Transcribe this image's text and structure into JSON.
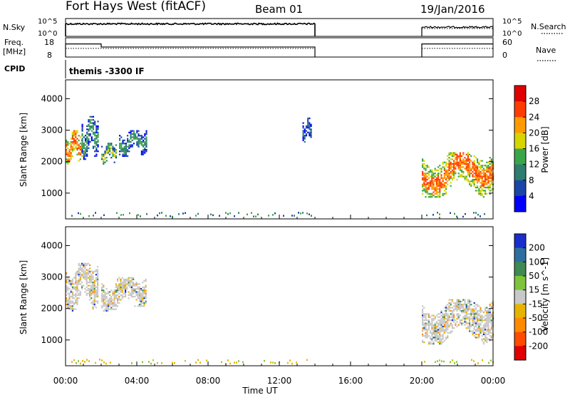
{
  "header": {
    "station": "Fort Hays West (fitACF)",
    "beam": "Beam 01",
    "date": "19/Jan/2016"
  },
  "param_panels": {
    "nsky_label": "N.Sky",
    "nsky_ticks": [
      "10^5",
      "10^0"
    ],
    "nsearch_label": "N.Search",
    "nsearch_ticks": [
      "10^5",
      "10^0"
    ],
    "freq_label": "Freq.",
    "freq_unit": "[MHz]",
    "freq_ticks": [
      "18",
      "8"
    ],
    "nave_label": "Nave",
    "nave_ticks": [
      "60",
      "0"
    ],
    "cpid_label": "CPID",
    "cpid_text": "themis -3300 IF",
    "series": {
      "noise_level_log": [
        {
          "start_h": 0.0,
          "end_h": 14.0,
          "value": 3.5
        },
        {
          "start_h": 20.0,
          "end_h": 24.0,
          "value": 2.6
        }
      ],
      "freq_mhz": [
        {
          "start_h": 0.0,
          "end_h": 2.0,
          "value": 14.8
        },
        {
          "start_h": 2.0,
          "end_h": 14.0,
          "value": 13.2
        },
        {
          "start_h": 20.0,
          "end_h": 24.0,
          "value": 14.8
        }
      ],
      "nave": [
        {
          "start_h": 0.0,
          "end_h": 14.0,
          "value": 27
        },
        {
          "start_h": 20.0,
          "end_h": 24.0,
          "value": 27
        }
      ]
    }
  },
  "chart_data": [
    {
      "type": "heatmap",
      "parameter": "power",
      "ylabel": "Slant Range [km]",
      "ylim": [
        180,
        4600
      ],
      "yticks": [
        "1000",
        "2000",
        "3000",
        "4000"
      ],
      "colorbar": {
        "label": "Power [dB]",
        "ticks": [
          "4",
          "8",
          "12",
          "16",
          "20",
          "24",
          "28"
        ],
        "colors": [
          "#0000ff",
          "#1a46a8",
          "#2e7d6e",
          "#3aa64a",
          "#d8d400",
          "#ff9a00",
          "#ff3c00",
          "#e00000"
        ]
      },
      "regions": [
        {
          "t": [
            0.0,
            0.9
          ],
          "r": [
            1950,
            3000
          ],
          "value": 22
        },
        {
          "t": [
            0.9,
            1.8
          ],
          "r": [
            2100,
            3450
          ],
          "value": 12
        },
        {
          "t": [
            2.0,
            2.8
          ],
          "r": [
            1950,
            2600
          ],
          "value": 14
        },
        {
          "t": [
            3.0,
            4.5
          ],
          "r": [
            2200,
            3000
          ],
          "value": 12
        },
        {
          "t": [
            13.3,
            13.8
          ],
          "r": [
            2600,
            3400
          ],
          "value": 8
        },
        {
          "t": [
            20.0,
            24.0
          ],
          "r": [
            900,
            2300
          ],
          "value": 24
        }
      ]
    },
    {
      "type": "heatmap",
      "parameter": "velocity",
      "ylabel": "Slant Range [km]",
      "ylim": [
        180,
        4600
      ],
      "yticks": [
        "1000",
        "2000",
        "3000",
        "4000"
      ],
      "colorbar": {
        "label": "Velocity [m s^-1]",
        "ticks": [
          "200",
          "100",
          "50",
          "15",
          "-15",
          "-50",
          "-100",
          "-200"
        ],
        "colors": [
          "#1a2ecc",
          "#2e6fa0",
          "#3f8a52",
          "#7dc43b",
          "#c8c8c8",
          "#e6b400",
          "#ff8a00",
          "#ff4a00",
          "#e00000"
        ]
      },
      "regions": [
        {
          "t": [
            0.0,
            1.8
          ],
          "r": [
            1950,
            3450
          ],
          "value": 0
        },
        {
          "t": [
            2.0,
            4.5
          ],
          "r": [
            1950,
            3000
          ],
          "value": 0
        },
        {
          "t": [
            20.0,
            24.0
          ],
          "r": [
            900,
            2300
          ],
          "value": 0
        }
      ]
    }
  ],
  "x_axis": {
    "label": "Time UT",
    "ticks": [
      "00:00",
      "04:00",
      "08:00",
      "12:00",
      "16:00",
      "20:00",
      "00:00"
    ],
    "range_hours": [
      0,
      24
    ]
  }
}
